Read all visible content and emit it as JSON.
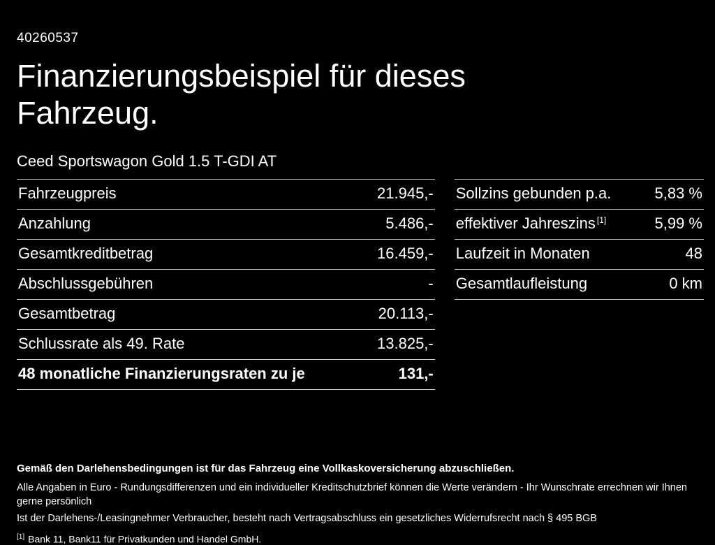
{
  "page": {
    "vehicle_id": "40260537",
    "title": "Finanzierungsbeispiel für dieses Fahrzeug.",
    "subtitle": "Ceed Sportswagon Gold 1.5 T-GDI AT"
  },
  "left_table": {
    "rows": [
      {
        "label": "Fahrzeugpreis",
        "value": "21.945,-"
      },
      {
        "label": "Anzahlung",
        "value": "5.486,-"
      },
      {
        "label": "Gesamtkreditbetrag",
        "value": "16.459,-"
      },
      {
        "label": "Abschlussgebühren",
        "value": "-"
      },
      {
        "label": "Gesamtbetrag",
        "value": "20.113,-"
      },
      {
        "label": "Schlussrate als 49. Rate",
        "value": "13.825,-"
      },
      {
        "label": "48 monatliche Finanzierungsraten zu je",
        "value": "131,-"
      }
    ]
  },
  "right_table": {
    "rows": [
      {
        "label": "Sollzins gebunden p.a.",
        "sup": "",
        "value": "5,83 %"
      },
      {
        "label": "effektiver Jahreszins",
        "sup": "[1]",
        "value": "5,99 %"
      },
      {
        "label": "Laufzeit in Monaten",
        "sup": "",
        "value": "48"
      },
      {
        "label": "Gesamtlaufleistung",
        "sup": "",
        "value": "0 km"
      }
    ]
  },
  "footer": {
    "line1": "Gemäß den Darlehensbedingungen ist für das Fahrzeug eine Vollkaskoversicherung abzuschließen.",
    "line2": "Alle Angaben in Euro - Rundungsdifferenzen und ein individueller Kreditschutzbrief können die Werte verändern - Ihr Wunschrate errechnen wir Ihnen gerne persönlich",
    "line3": "Ist der Darlehens-/Leasingnehmer Verbraucher, besteht nach Vertragsabschluss ein gesetzliches Widerrufsrecht nach § 495 BGB",
    "footnote_marker": "[1]",
    "footnote_text": "Bank 11, Bank11 für Privatkunden und Handel GmbH."
  },
  "colors": {
    "background": "#000000",
    "text": "#ffffff",
    "divider": "#d2d2d2"
  }
}
